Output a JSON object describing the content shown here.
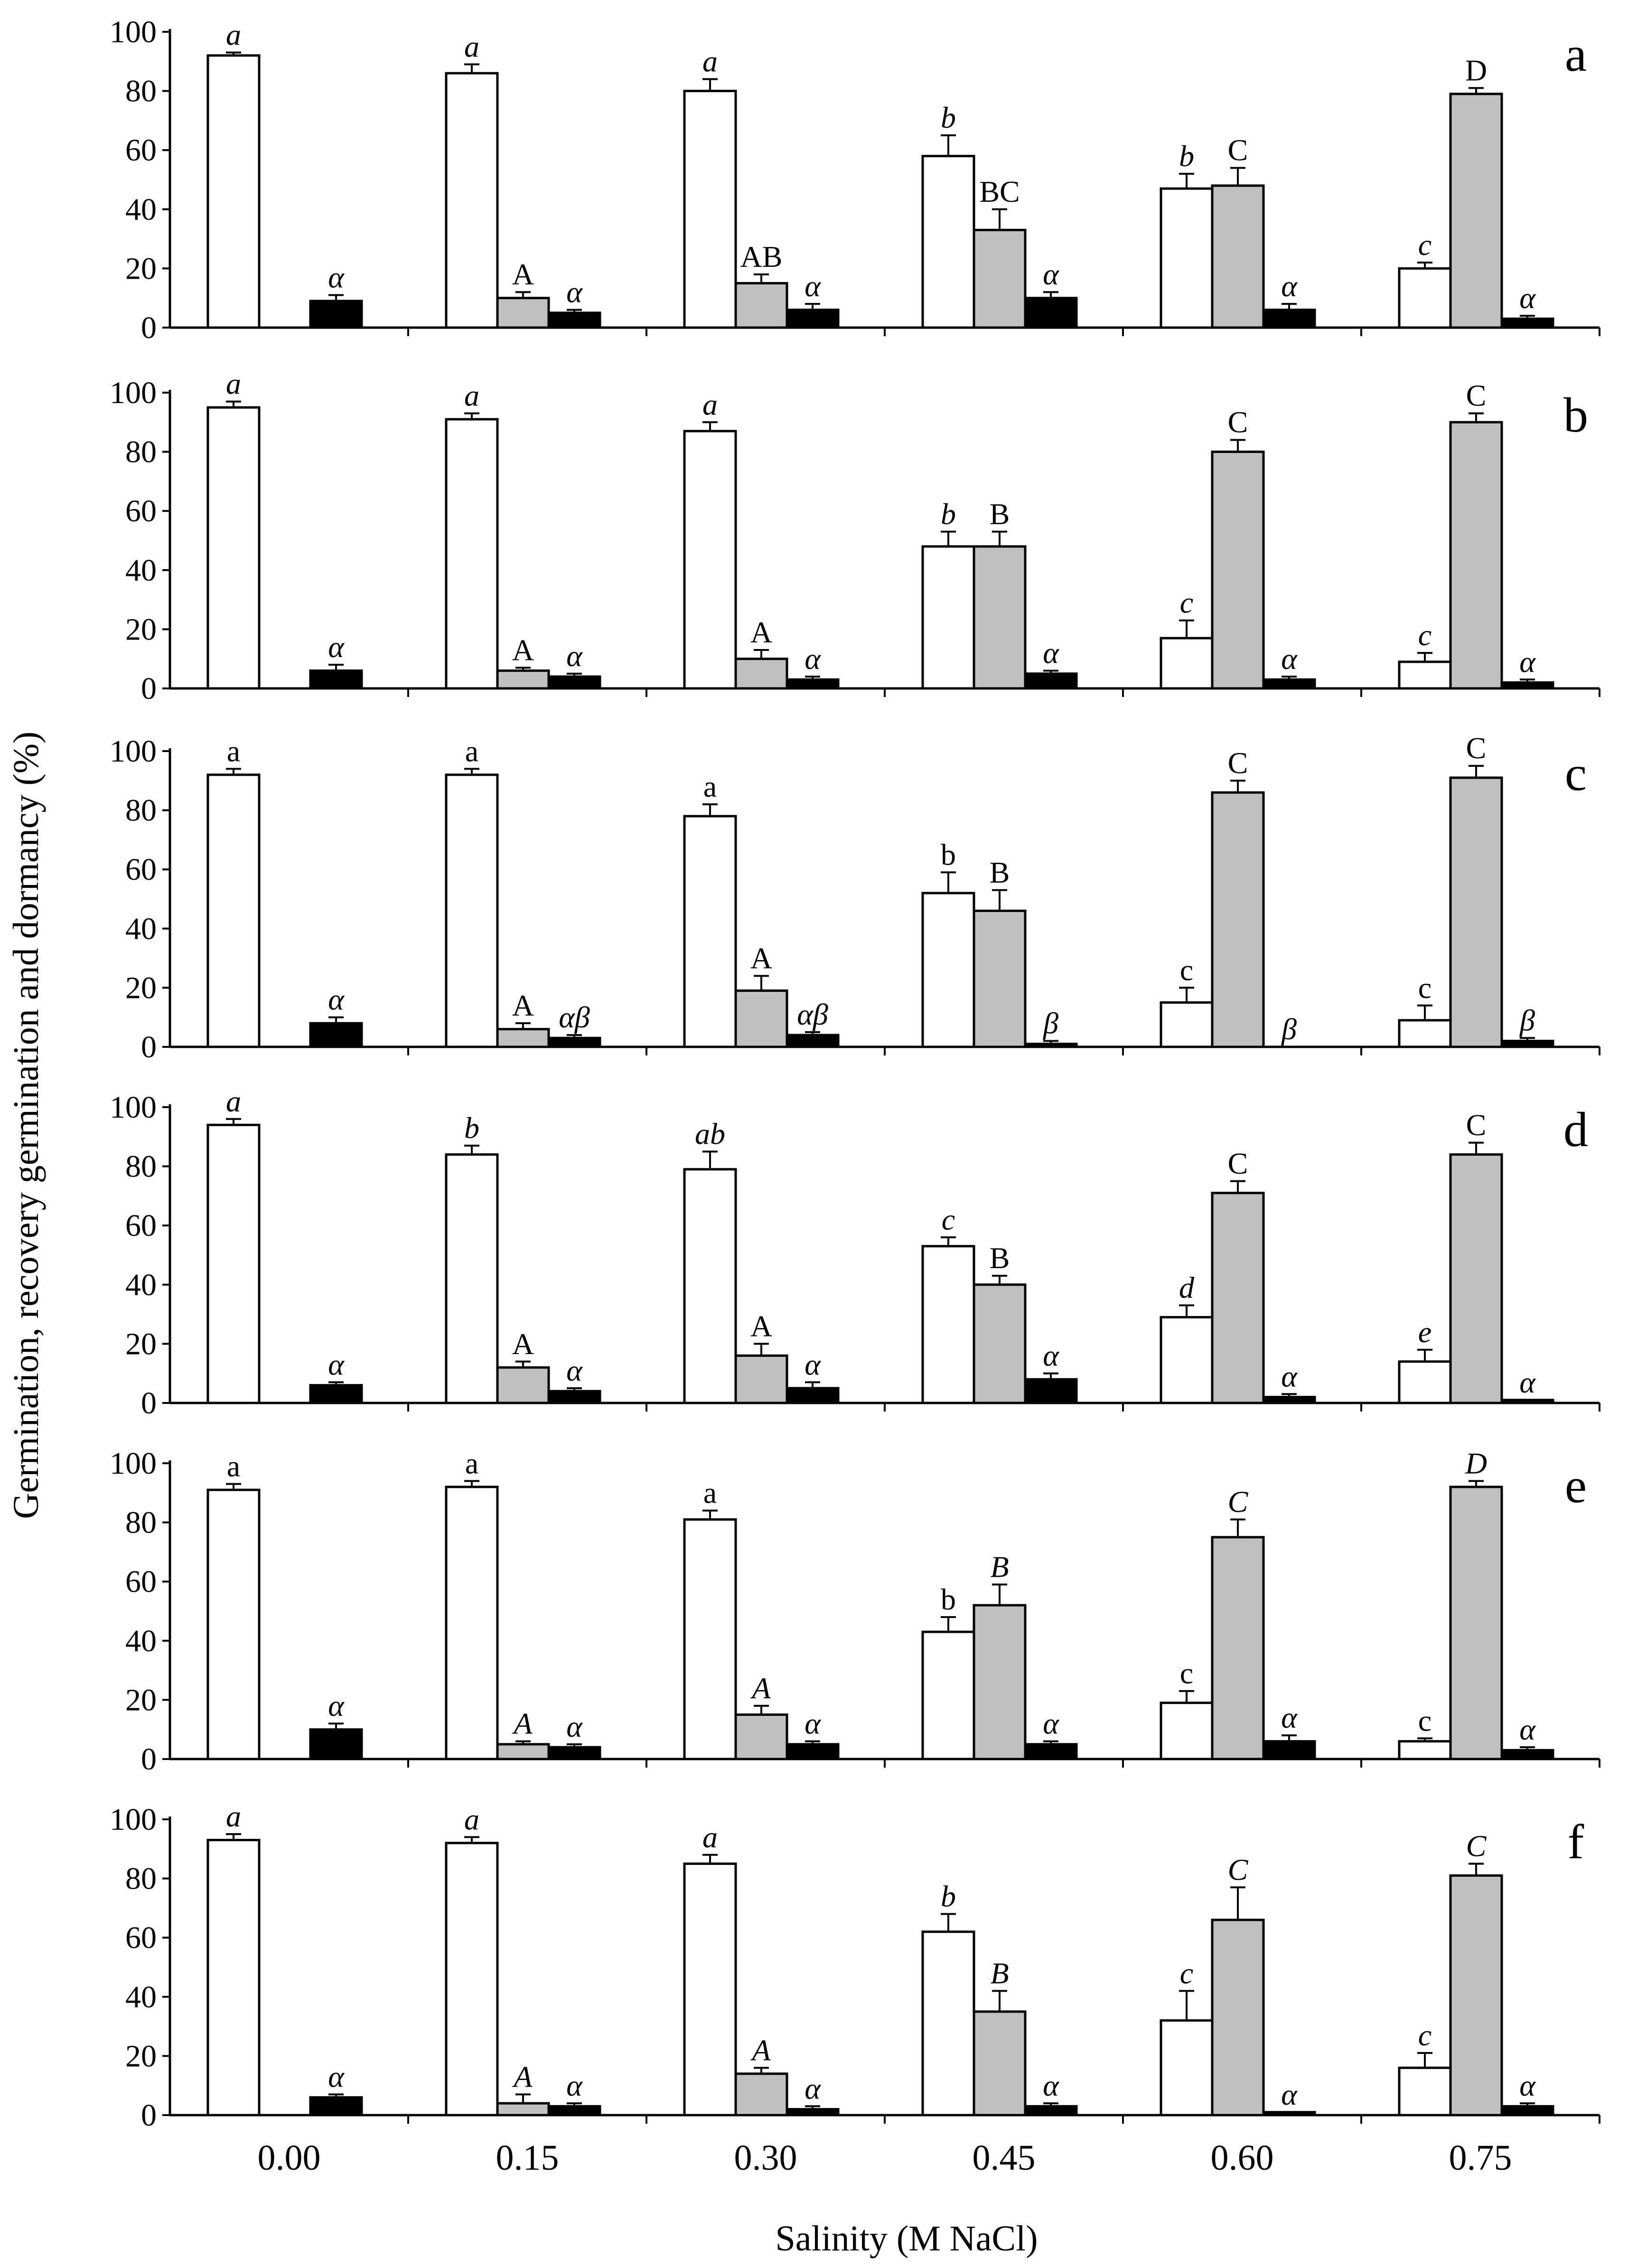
{
  "chart_data": {
    "type": "bar",
    "ylabel": "Germination, recovery germination and dormancy (%)",
    "xlabel": "Salinity (M NaCl)",
    "categories": [
      "0.00",
      "0.15",
      "0.30",
      "0.45",
      "0.60",
      "0.75"
    ],
    "ylim": [
      0,
      100
    ],
    "yticks": [
      "0",
      "20",
      "40",
      "60",
      "80",
      "100"
    ],
    "series_names": [
      "Germination",
      "Recovery germination",
      "Dormancy"
    ],
    "series_colors": [
      "#ffffff",
      "#c0c0c0",
      "#000000"
    ],
    "panels": [
      {
        "label": "a",
        "germination": [
          92,
          86,
          80,
          58,
          47,
          20
        ],
        "germination_err": [
          1,
          3,
          4,
          7,
          5,
          2
        ],
        "germination_letters": [
          "a",
          "a",
          "a",
          "b",
          "b",
          "c"
        ],
        "germination_italic": true,
        "recovery": [
          null,
          10,
          15,
          33,
          48,
          79
        ],
        "recovery_err": [
          null,
          2,
          3,
          7,
          6,
          2
        ],
        "recovery_letters": [
          "",
          "A",
          "AB",
          "BC",
          "C",
          "D"
        ],
        "recovery_italic": false,
        "dormancy": [
          9,
          5,
          6,
          10,
          6,
          3
        ],
        "dormancy_err": [
          2,
          1,
          2,
          2,
          2,
          1
        ],
        "dormancy_letters": [
          "α",
          "α",
          "α",
          "α",
          "α",
          "α"
        ]
      },
      {
        "label": "b",
        "germination": [
          95,
          91,
          87,
          48,
          17,
          9
        ],
        "germination_err": [
          2,
          2,
          3,
          5,
          6,
          3
        ],
        "germination_letters": [
          "a",
          "a",
          "a",
          "b",
          "c",
          "c"
        ],
        "germination_italic": true,
        "recovery": [
          null,
          6,
          10,
          48,
          80,
          90
        ],
        "recovery_err": [
          null,
          1,
          3,
          5,
          4,
          3
        ],
        "recovery_letters": [
          "",
          "A",
          "A",
          "B",
          "C",
          "C"
        ],
        "recovery_italic": false,
        "dormancy": [
          6,
          4,
          3,
          5,
          3,
          2
        ],
        "dormancy_err": [
          2,
          1,
          1,
          1,
          1,
          1
        ],
        "dormancy_letters": [
          "α",
          "α",
          "α",
          "α",
          "α",
          "α"
        ]
      },
      {
        "label": "c",
        "germination": [
          92,
          92,
          78,
          52,
          15,
          9
        ],
        "germination_err": [
          2,
          2,
          4,
          7,
          5,
          5
        ],
        "germination_letters": [
          "a",
          "a",
          "a",
          "b",
          "c",
          "c"
        ],
        "germination_italic": false,
        "recovery": [
          null,
          6,
          19,
          46,
          86,
          91
        ],
        "recovery_err": [
          null,
          2,
          5,
          7,
          4,
          4
        ],
        "recovery_letters": [
          "",
          "A",
          "A",
          "B",
          "C",
          "C"
        ],
        "recovery_italic": false,
        "dormancy": [
          8,
          3,
          4,
          1,
          0,
          2
        ],
        "dormancy_err": [
          2,
          1,
          1,
          1,
          0,
          1
        ],
        "dormancy_letters": [
          "α",
          "αβ",
          "αβ",
          "β",
          "β",
          "β"
        ]
      },
      {
        "label": "d",
        "germination": [
          94,
          84,
          79,
          53,
          29,
          14
        ],
        "germination_err": [
          2,
          3,
          6,
          3,
          4,
          4
        ],
        "germination_letters": [
          "a",
          "b",
          "ab",
          "c",
          "d",
          "e"
        ],
        "germination_italic": true,
        "recovery": [
          null,
          12,
          16,
          40,
          71,
          84
        ],
        "recovery_err": [
          null,
          2,
          4,
          3,
          4,
          4
        ],
        "recovery_letters": [
          "",
          "A",
          "A",
          "B",
          "C",
          "C"
        ],
        "recovery_italic": false,
        "dormancy": [
          6,
          4,
          5,
          8,
          2,
          1
        ],
        "dormancy_err": [
          1,
          1,
          2,
          2,
          1,
          0
        ],
        "dormancy_letters": [
          "α",
          "α",
          "α",
          "α",
          "α",
          "α"
        ]
      },
      {
        "label": "e",
        "germination": [
          91,
          92,
          81,
          43,
          19,
          6
        ],
        "germination_err": [
          2,
          2,
          3,
          5,
          4,
          1
        ],
        "germination_letters": [
          "a",
          "a",
          "a",
          "b",
          "c",
          "c"
        ],
        "germination_italic": false,
        "recovery": [
          null,
          5,
          15,
          52,
          75,
          92
        ],
        "recovery_err": [
          null,
          1,
          3,
          7,
          6,
          2
        ],
        "recovery_letters": [
          "",
          "A",
          "A",
          "B",
          "C",
          "D"
        ],
        "recovery_italic": true,
        "dormancy": [
          10,
          4,
          5,
          5,
          6,
          3
        ],
        "dormancy_err": [
          2,
          1,
          1,
          1,
          2,
          1
        ],
        "dormancy_letters": [
          "α",
          "α",
          "α",
          "α",
          "α",
          "α"
        ]
      },
      {
        "label": "f",
        "germination": [
          93,
          92,
          85,
          62,
          32,
          16
        ],
        "germination_err": [
          2,
          2,
          3,
          6,
          10,
          5
        ],
        "germination_letters": [
          "a",
          "a",
          "a",
          "b",
          "c",
          "c"
        ],
        "germination_italic": true,
        "recovery": [
          null,
          4,
          14,
          35,
          66,
          81
        ],
        "recovery_err": [
          null,
          3,
          2,
          7,
          11,
          4
        ],
        "recovery_letters": [
          "",
          "A",
          "A",
          "B",
          "C",
          "C"
        ],
        "recovery_italic": true,
        "dormancy": [
          6,
          3,
          2,
          3,
          1,
          3
        ],
        "dormancy_err": [
          1,
          1,
          1,
          1,
          0,
          1
        ],
        "dormancy_letters": [
          "α",
          "α",
          "α",
          "α",
          "α",
          "α"
        ]
      }
    ]
  }
}
